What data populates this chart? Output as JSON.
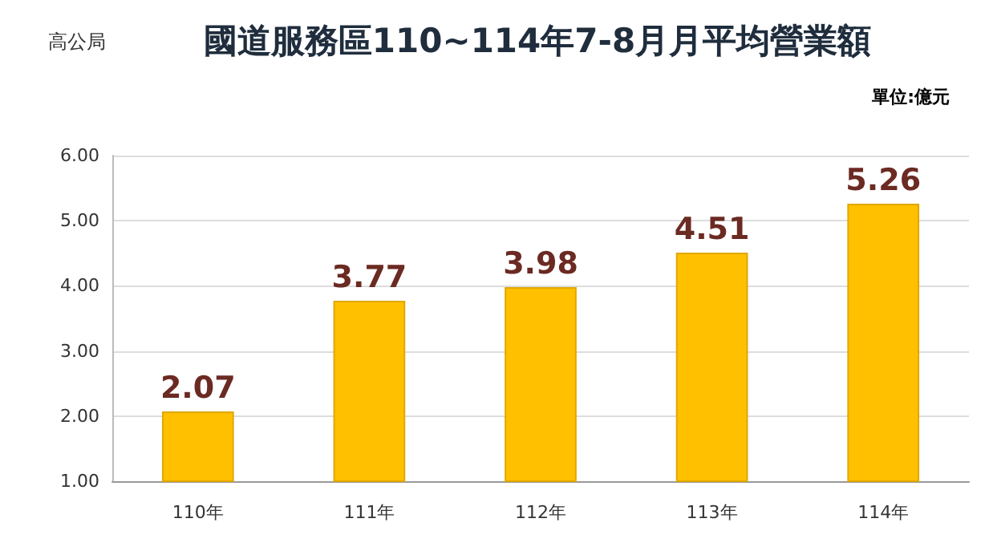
{
  "chart_data": {
    "type": "bar",
    "title": "國道服務區110~114年7-8月月平均營業額",
    "annotations": [
      "高公局",
      "單位:億元"
    ],
    "categories": [
      "110年",
      "111年",
      "112年",
      "113年",
      "114年"
    ],
    "values": [
      2.07,
      3.77,
      3.98,
      4.51,
      5.26
    ],
    "color": "#ffc000",
    "data_labels": true,
    "ylim": [
      1,
      6
    ],
    "yticks": [
      {
        "value": 1,
        "label": "1.00"
      },
      {
        "value": 2,
        "label": "2.00"
      },
      {
        "value": 3,
        "label": "3.00"
      },
      {
        "value": 4,
        "label": "4.00"
      },
      {
        "value": 5,
        "label": "5.00"
      },
      {
        "value": 6,
        "label": "6.00"
      }
    ],
    "grid": true
  }
}
